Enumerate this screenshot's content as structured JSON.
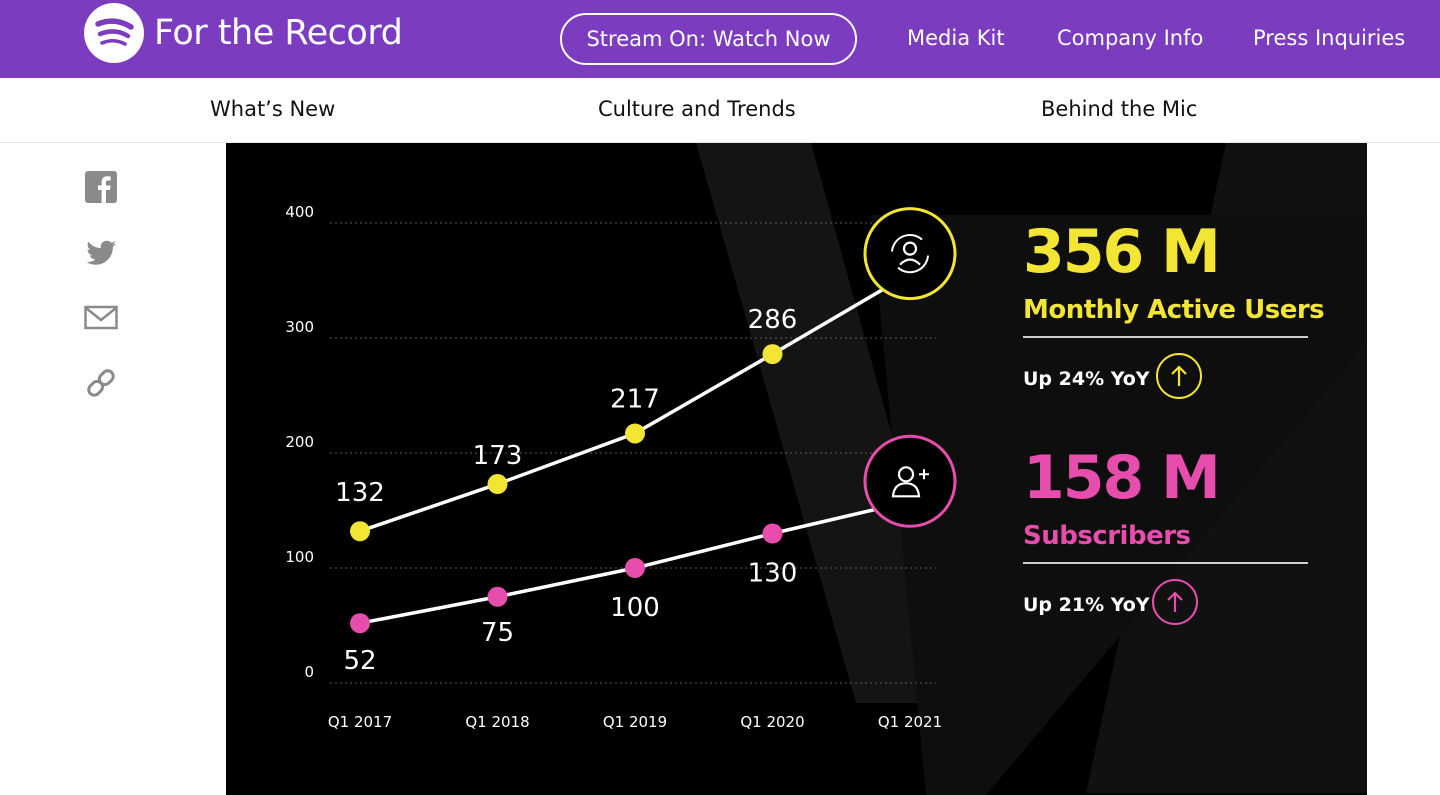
{
  "header": {
    "brand": "For the Record",
    "stream_button": "Stream On: Watch Now",
    "links": [
      "Media Kit",
      "Company Info",
      "Press Inquiries"
    ],
    "logo_icon": "spotify-logo-icon"
  },
  "subnav": {
    "links": [
      "What’s New",
      "Culture and Trends",
      "Behind the Mic"
    ]
  },
  "share": {
    "icons": [
      "facebook-icon",
      "twitter-icon",
      "mail-icon",
      "link-icon"
    ]
  },
  "stats": {
    "mau_value": "356 M",
    "mau_label": "Monthly Active Users",
    "mau_yoy": "Up 24% YoY",
    "subs_value": "158 M",
    "subs_label": "Subscribers",
    "subs_yoy": "Up 21% YoY"
  },
  "colors": {
    "purple": "#7b3cc0",
    "yellow": "#f2e534",
    "pink": "#e64dac"
  },
  "chart_data": {
    "type": "line",
    "categories": [
      "Q1 2017",
      "Q1 2018",
      "Q1 2019",
      "Q1 2020",
      "Q1 2021"
    ],
    "yticks": [
      0,
      100,
      200,
      300,
      400
    ],
    "ylim": [
      0,
      400
    ],
    "series": [
      {
        "name": "Monthly Active Users",
        "color": "#f2e534",
        "values": [
          132,
          173,
          217,
          286,
          356
        ],
        "labels": [
          "132",
          "173",
          "217",
          "286",
          ""
        ]
      },
      {
        "name": "Subscribers",
        "color": "#e64dac",
        "values": [
          52,
          75,
          100,
          130,
          158
        ],
        "labels": [
          "52",
          "75",
          "100",
          "130",
          ""
        ]
      }
    ]
  }
}
